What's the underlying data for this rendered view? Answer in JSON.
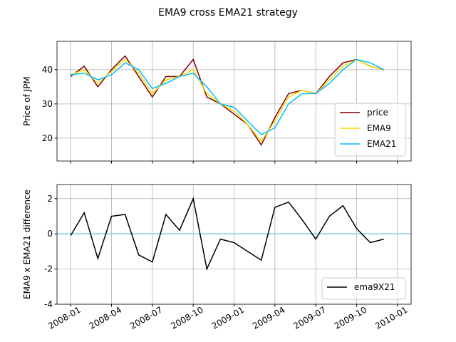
{
  "title": "EMA9 cross EMA21 strategy",
  "chart_data": [
    {
      "type": "line",
      "ylabel": "Price of JPM",
      "x": [
        "2008-01",
        "2008-02",
        "2008-03",
        "2008-04",
        "2008-05",
        "2008-06",
        "2008-07",
        "2008-08",
        "2008-09",
        "2008-10",
        "2008-11",
        "2008-12",
        "2009-01",
        "2009-02",
        "2009-03",
        "2009-04",
        "2009-05",
        "2009-06",
        "2009-07",
        "2009-08",
        "2009-09",
        "2009-10",
        "2009-11",
        "2009-12"
      ],
      "series": [
        {
          "name": "price",
          "color": "#800000",
          "values": [
            38,
            41,
            35,
            40,
            44,
            38,
            32,
            38,
            38,
            43,
            32,
            30,
            27,
            24,
            18,
            26,
            33,
            34,
            33,
            38,
            42,
            43,
            41,
            40
          ]
        },
        {
          "name": "EMA9",
          "color": "#ffd700",
          "values": [
            38.5,
            40,
            36,
            39.5,
            43,
            39,
            33,
            37,
            38,
            40,
            33,
            30,
            28,
            24,
            19,
            25,
            32,
            34,
            33,
            37,
            41,
            43,
            41,
            40
          ]
        },
        {
          "name": "EMA21",
          "color": "#00bfff",
          "values": [
            38.5,
            39,
            37,
            38.5,
            42,
            40,
            34.5,
            36,
            38,
            39,
            35,
            30,
            29,
            25,
            21,
            23,
            30,
            33,
            33,
            36,
            40,
            43,
            42,
            40
          ]
        }
      ],
      "xlim": [
        "2007-12",
        "2010-02"
      ],
      "xticks": [
        "2008-01",
        "2008-04",
        "2008-07",
        "2008-10",
        "2009-01",
        "2009-04",
        "2009-07",
        "2009-10",
        "2010-01"
      ],
      "show_xtick_labels": false,
      "ylim": [
        13.3,
        48.3
      ],
      "yticks": [
        20,
        30,
        40
      ],
      "grid": true,
      "legend": "lower right"
    },
    {
      "type": "line",
      "ylabel": "EMA9 x EMA21 difference",
      "x": [
        "2008-01",
        "2008-02",
        "2008-03",
        "2008-04",
        "2008-05",
        "2008-06",
        "2008-07",
        "2008-08",
        "2008-09",
        "2008-10",
        "2008-11",
        "2008-12",
        "2009-01",
        "2009-02",
        "2009-03",
        "2009-04",
        "2009-05",
        "2009-06",
        "2009-07",
        "2009-08",
        "2009-09",
        "2009-10",
        "2009-11",
        "2009-12"
      ],
      "series": [
        {
          "name": "ema9X21",
          "color": "#000000",
          "values": [
            -0.1,
            1.2,
            -1.4,
            1.0,
            1.1,
            -1.2,
            -1.6,
            1.1,
            0.2,
            2.0,
            -2.0,
            -0.3,
            -0.5,
            -1.0,
            -1.5,
            1.5,
            1.8,
            0.8,
            -0.3,
            1.0,
            1.6,
            0.3,
            -0.5,
            -0.3
          ]
        }
      ],
      "hline": 0,
      "hline_color": "#87ceeb",
      "xlim": [
        "2007-12",
        "2010-02"
      ],
      "xticks": [
        "2008-01",
        "2008-04",
        "2008-07",
        "2008-10",
        "2009-01",
        "2009-04",
        "2009-07",
        "2009-10",
        "2010-01"
      ],
      "show_xtick_labels": true,
      "ylim": [
        -4.0,
        2.8
      ],
      "yticks": [
        -4,
        -2,
        0,
        2
      ],
      "grid": true,
      "legend": "lower right"
    }
  ]
}
